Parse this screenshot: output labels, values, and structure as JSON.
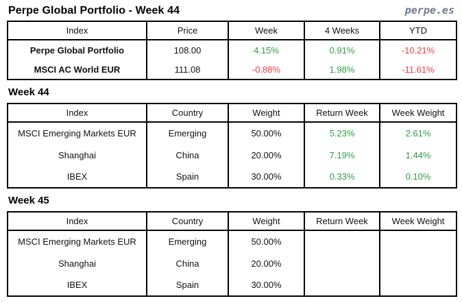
{
  "page": {
    "title": "Perpe Global Portfolio - Week 44",
    "brand": "perpe.es"
  },
  "colors": {
    "positive": "#2f9e44",
    "negative": "#fb3a3a",
    "brand": "#6e7b8a",
    "border": "#000000"
  },
  "summary_table": {
    "headers": [
      "Index",
      "Price",
      "Week",
      "4 Weeks",
      "YTD"
    ],
    "rows": [
      {
        "cells": [
          {
            "text": "Perpe Global Portfolio",
            "tone": ""
          },
          {
            "text": "108.00",
            "tone": ""
          },
          {
            "text": "4.15%",
            "tone": "pos"
          },
          {
            "text": "0.91%",
            "tone": "pos"
          },
          {
            "text": "-10.21%",
            "tone": "neg"
          }
        ]
      },
      {
        "cells": [
          {
            "text": "MSCI AC World EUR",
            "tone": ""
          },
          {
            "text": "111.08",
            "tone": ""
          },
          {
            "text": "-0.88%",
            "tone": "neg"
          },
          {
            "text": "1.98%",
            "tone": "pos"
          },
          {
            "text": "-11.61%",
            "tone": "neg"
          }
        ]
      }
    ]
  },
  "week44": {
    "title": "Week 44",
    "headers": [
      "Index",
      "Country",
      "Weight",
      "Return Week",
      "Week Weight"
    ],
    "rows": [
      {
        "cells": [
          {
            "text": "MSCI Emerging Markets EUR",
            "tone": ""
          },
          {
            "text": "Emerging",
            "tone": ""
          },
          {
            "text": "50.00%",
            "tone": ""
          },
          {
            "text": "5.23%",
            "tone": "pos"
          },
          {
            "text": "2.61%",
            "tone": "pos"
          }
        ]
      },
      {
        "cells": [
          {
            "text": "Shanghai",
            "tone": ""
          },
          {
            "text": "China",
            "tone": ""
          },
          {
            "text": "20.00%",
            "tone": ""
          },
          {
            "text": "7.19%",
            "tone": "pos"
          },
          {
            "text": "1.44%",
            "tone": "pos"
          }
        ]
      },
      {
        "cells": [
          {
            "text": "IBEX",
            "tone": ""
          },
          {
            "text": "Spain",
            "tone": ""
          },
          {
            "text": "30.00%",
            "tone": ""
          },
          {
            "text": "0.33%",
            "tone": "pos"
          },
          {
            "text": "0.10%",
            "tone": "pos"
          }
        ]
      }
    ]
  },
  "week45": {
    "title": "Week 45",
    "headers": [
      "Index",
      "Country",
      "Weight",
      "Return Week",
      "Week Weight"
    ],
    "rows": [
      {
        "cells": [
          {
            "text": "MSCI Emerging Markets EUR",
            "tone": ""
          },
          {
            "text": "Emerging",
            "tone": ""
          },
          {
            "text": "50.00%",
            "tone": ""
          },
          {
            "text": "",
            "tone": ""
          },
          {
            "text": "",
            "tone": ""
          }
        ]
      },
      {
        "cells": [
          {
            "text": "Shanghai",
            "tone": ""
          },
          {
            "text": "China",
            "tone": ""
          },
          {
            "text": "20.00%",
            "tone": ""
          },
          {
            "text": "",
            "tone": ""
          },
          {
            "text": "",
            "tone": ""
          }
        ]
      },
      {
        "cells": [
          {
            "text": "IBEX",
            "tone": ""
          },
          {
            "text": "Spain",
            "tone": ""
          },
          {
            "text": "30.00%",
            "tone": ""
          },
          {
            "text": "",
            "tone": ""
          },
          {
            "text": "",
            "tone": ""
          }
        ]
      }
    ]
  }
}
